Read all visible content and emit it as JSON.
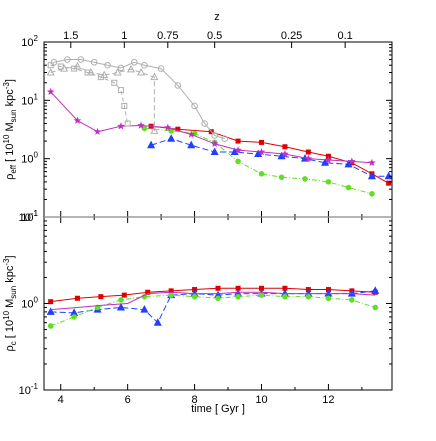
{
  "chart_data": [
    {
      "type": "line",
      "panel": "top",
      "ylabel_base": "ρ",
      "ylabel_sub": "eff",
      "ylabel_unit_open": "[ 10",
      "ylabel_unit_exp": "10",
      "ylabel_unit_mid": " M",
      "ylabel_unit_sub": "sun",
      "ylabel_unit_tail": " kpc",
      "ylabel_unit_exp2": "-3",
      "ylabel_unit_close": "]",
      "yscale": "log",
      "ylim": [
        0.1,
        100
      ],
      "yticks": [
        {
          "v": 0.1,
          "e": "-1"
        },
        {
          "v": 1,
          "e": "0"
        },
        {
          "v": 10,
          "e": "1"
        },
        {
          "v": 100,
          "e": "2"
        }
      ],
      "xlim": [
        3.5,
        13.9
      ],
      "top_axis_label": "z",
      "top_ticks": [
        {
          "t": 4.3,
          "label": "1.5"
        },
        {
          "t": 5.9,
          "label": "1"
        },
        {
          "t": 7.2,
          "label": "0.75"
        },
        {
          "t": 8.6,
          "label": "0.5"
        },
        {
          "t": 10.9,
          "label": "0.25"
        },
        {
          "t": 12.5,
          "label": "0.1"
        }
      ],
      "series": [
        {
          "color": "#e00000",
          "marker": "square",
          "dash": "",
          "x": [
            6.7,
            7.5,
            8.5,
            9.3,
            10.0,
            10.7,
            11.4,
            12.0,
            12.7,
            13.3,
            13.8
          ],
          "y": [
            3.6,
            3.2,
            2.9,
            2.0,
            1.9,
            1.6,
            1.3,
            1.1,
            0.85,
            0.55,
            0.38
          ]
        },
        {
          "color": "#2040ff",
          "marker": "triangle",
          "dash": "6,3",
          "x": [
            6.7,
            7.3,
            7.9,
            8.6,
            9.2,
            9.9,
            10.6,
            11.3,
            11.9,
            12.6,
            13.3,
            13.8
          ],
          "y": [
            1.7,
            2.2,
            1.7,
            1.3,
            1.3,
            1.2,
            1.1,
            1.0,
            0.85,
            0.8,
            0.5,
            0.5
          ]
        },
        {
          "color": "#60e020",
          "marker": "circle",
          "dash": "5,2,1,2",
          "x": [
            6.5,
            7.3,
            8.0,
            8.6,
            9.3,
            10.0,
            10.6,
            11.3,
            12.0,
            12.6,
            13.3
          ],
          "y": [
            3.3,
            3.0,
            2.7,
            1.9,
            0.9,
            0.55,
            0.48,
            0.45,
            0.4,
            0.32,
            0.25
          ]
        },
        {
          "color": "#c030c0",
          "marker": "star",
          "dash": "",
          "x": [
            3.7,
            4.5,
            5.1,
            5.8,
            6.4,
            7.2,
            7.9,
            8.6,
            9.3,
            10.0,
            10.7,
            11.4,
            12.0,
            12.7,
            13.3
          ],
          "y": [
            14,
            4.5,
            2.9,
            3.6,
            3.7,
            3.4,
            2.6,
            1.8,
            1.4,
            1.3,
            1.2,
            1.0,
            0.95,
            0.9,
            0.85
          ]
        },
        {
          "color": "#b0b0b0",
          "marker": "circle-open",
          "dash": "",
          "x": [
            3.8,
            4.2,
            4.6,
            5.0,
            5.4,
            5.8,
            6.2,
            6.5,
            7.0,
            7.5,
            8.0,
            8.3,
            8.6,
            8.9
          ],
          "y": [
            45,
            50,
            50,
            45,
            40,
            36,
            45,
            40,
            35,
            18,
            8,
            4,
            2.5,
            2.2
          ]
        },
        {
          "color": "#b0b0b0",
          "marker": "triangle-open",
          "dash": "5,3",
          "x": [
            3.7,
            4.1,
            4.5,
            4.9,
            5.3,
            5.7,
            6.1,
            6.4,
            6.8,
            6.8
          ],
          "y": [
            30,
            35,
            38,
            30,
            27,
            30,
            34,
            30,
            25,
            3.0
          ]
        },
        {
          "color": "#b0b0b0",
          "marker": "square-open",
          "dash": "4,3",
          "x": [
            3.7,
            4.0,
            4.4,
            4.8,
            5.2,
            5.6,
            5.8,
            5.9,
            6.0
          ],
          "y": [
            40,
            38,
            35,
            30,
            25,
            20,
            15,
            8,
            4.0
          ]
        }
      ]
    },
    {
      "type": "line",
      "panel": "bottom",
      "ylabel_base": "ρ",
      "ylabel_sub": "c",
      "ylabel_unit_open": "[ 10",
      "ylabel_unit_exp": "10",
      "ylabel_unit_mid": " M",
      "ylabel_unit_sub": "sun",
      "ylabel_unit_tail": " kpc",
      "ylabel_unit_exp2": "-3",
      "ylabel_unit_close": "]",
      "yscale": "log",
      "ylim": [
        0.1,
        10
      ],
      "yticks": [
        {
          "v": 0.1,
          "e": "-1"
        },
        {
          "v": 1,
          "e": "0"
        },
        {
          "v": 10,
          "e": "1"
        }
      ],
      "xlim": [
        3.5,
        13.9
      ],
      "xlabel": "time [ Gyr ]",
      "xticks": [
        4,
        6,
        8,
        10,
        12
      ],
      "series": [
        {
          "color": "#e00000",
          "marker": "square",
          "dash": "",
          "x": [
            3.7,
            4.5,
            5.2,
            5.9,
            6.6,
            7.3,
            8.0,
            8.7,
            9.3,
            10.0,
            10.7,
            11.4,
            12.0,
            12.7,
            13.4
          ],
          "y": [
            1.05,
            1.15,
            1.2,
            1.25,
            1.35,
            1.4,
            1.45,
            1.5,
            1.5,
            1.5,
            1.5,
            1.45,
            1.45,
            1.4,
            1.35
          ]
        },
        {
          "color": "#2040ff",
          "marker": "triangle",
          "dash": "6,3",
          "x": [
            3.7,
            4.4,
            5.1,
            5.8,
            6.5,
            6.9,
            7.3,
            8.0,
            8.7,
            9.3,
            10.0,
            10.7,
            11.4,
            12.0,
            12.7,
            13.4
          ],
          "y": [
            0.8,
            0.78,
            0.85,
            0.9,
            0.85,
            0.6,
            1.25,
            1.3,
            1.25,
            1.3,
            1.3,
            1.3,
            1.3,
            1.3,
            1.3,
            1.4
          ]
        },
        {
          "color": "#60e020",
          "marker": "circle",
          "dash": "5,2,1,2",
          "x": [
            3.7,
            4.4,
            5.1,
            5.8,
            6.5,
            7.3,
            8.0,
            8.7,
            9.3,
            10.0,
            10.7,
            11.4,
            12.0,
            12.7,
            13.4
          ],
          "y": [
            0.55,
            0.7,
            0.9,
            1.1,
            1.2,
            1.25,
            1.2,
            1.15,
            1.2,
            1.25,
            1.2,
            1.2,
            1.15,
            1.1,
            0.9
          ]
        },
        {
          "color": "#c030c0",
          "marker": "none",
          "dash": "",
          "x": [
            3.7,
            4.5,
            5.2,
            6.0,
            6.6,
            7.3,
            8.0,
            8.7,
            9.3,
            10.0,
            10.7,
            11.4,
            12.0,
            12.7,
            13.4
          ],
          "y": [
            0.85,
            0.9,
            0.95,
            1.0,
            1.3,
            1.35,
            1.3,
            1.3,
            1.35,
            1.35,
            1.3,
            1.3,
            1.3,
            1.3,
            1.25
          ]
        }
      ]
    }
  ]
}
